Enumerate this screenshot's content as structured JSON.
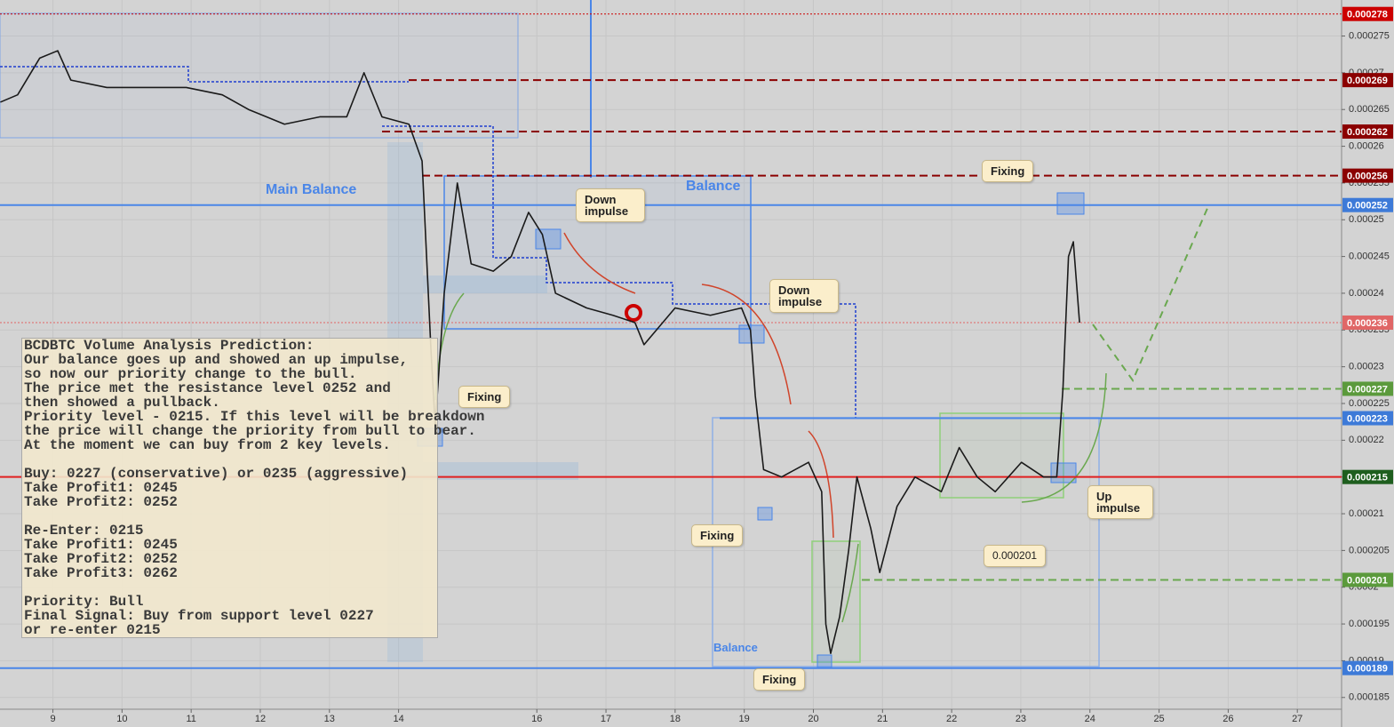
{
  "chart_data": {
    "type": "line",
    "grid": true,
    "xlim": [
      8.235,
      27.64
    ],
    "ylim": [
      0.0001834,
      0.0002799
    ],
    "xticks": [
      9,
      10,
      11,
      12,
      13,
      14,
      16,
      17,
      18,
      19,
      20,
      21,
      22,
      23,
      24,
      25,
      26,
      27
    ],
    "yticks": [
      0.000185,
      0.00019,
      0.000195,
      0.0002,
      0.000205,
      0.00021,
      0.000215,
      0.00022,
      0.000225,
      0.00023,
      0.000235,
      0.00024,
      0.000245,
      0.00025,
      0.000255,
      0.00026,
      0.000265,
      0.00027,
      0.000275
    ],
    "series": [
      {
        "color": "#1a1a1a",
        "x": [
          8.24,
          8.49,
          8.81,
          9.07,
          9.26,
          9.78,
          10.29,
          10.93,
          11.45,
          11.83,
          12.35,
          12.86,
          13.25,
          13.5,
          13.76,
          14.15,
          14.34,
          14.47,
          14.53,
          14.66,
          14.85,
          15.05,
          15.37,
          15.63,
          15.88,
          16.08,
          16.27,
          16.72,
          17.1,
          17.42,
          17.55,
          18.0,
          18.51,
          18.96,
          19.09,
          19.16,
          19.28,
          19.54,
          19.93,
          20.12,
          20.18,
          20.25,
          20.38,
          20.51,
          20.63,
          20.83,
          20.96,
          21.21,
          21.47,
          21.85,
          22.11,
          22.37,
          22.63,
          23.01,
          23.33,
          23.52,
          23.61,
          23.69,
          23.76,
          23.85
        ],
        "values": [
          0.000266,
          0.000267,
          0.000272,
          0.000273,
          0.000269,
          0.000268,
          0.000268,
          0.000268,
          0.000267,
          0.000265,
          0.000263,
          0.000264,
          0.000264,
          0.00027,
          0.000264,
          0.000263,
          0.000258,
          0.000232,
          0.000222,
          0.00024,
          0.000255,
          0.000244,
          0.000243,
          0.000245,
          0.000251,
          0.000248,
          0.00024,
          0.000238,
          0.000237,
          0.000236,
          0.000233,
          0.000238,
          0.000237,
          0.000238,
          0.000235,
          0.000226,
          0.000216,
          0.000215,
          0.000217,
          0.000213,
          0.000195,
          0.000191,
          0.000196,
          0.000205,
          0.000215,
          0.000208,
          0.000202,
          0.000211,
          0.000215,
          0.000213,
          0.000219,
          0.000215,
          0.000213,
          0.000217,
          0.000215,
          0.000215,
          0.000227,
          0.000245,
          0.000247,
          0.000236
        ]
      }
    ],
    "levels": [
      {
        "value": 0.000278,
        "color": "#cc0000",
        "line_color": "#cc0000",
        "style": "dotted"
      },
      {
        "value": 0.000269,
        "color": "#8b0000",
        "line_color": "#8b0000",
        "style": "dashed"
      },
      {
        "value": 0.000262,
        "color": "#8b0000",
        "line_color": "#8b0000",
        "style": "dashed"
      },
      {
        "value": 0.000256,
        "color": "#8b0000",
        "line_color": "#8b0000",
        "style": "dashed"
      },
      {
        "value": 0.000252,
        "color": "#3d7ad8",
        "line_color": "#4a86e8",
        "style": "solid"
      },
      {
        "value": 0.000236,
        "color": "#e06666",
        "line_color": "#e06666",
        "style": "dotted"
      },
      {
        "value": 0.000227,
        "color": "#5b9a3c",
        "line_color": "#6aa84f",
        "style": "dashed"
      },
      {
        "value": 0.000223,
        "color": "#3d7ad8",
        "line_color": "#4a86e8",
        "style": "solid"
      },
      {
        "value": 0.000215,
        "color": "#1e5e1e",
        "line_color": "#e02020",
        "style": "solid"
      },
      {
        "value": 0.000201,
        "color": "#5b9a3c",
        "line_color": "#6aa84f",
        "style": "dashed"
      },
      {
        "value": 0.000189,
        "color": "#3d7ad8",
        "line_color": "#4a86e8",
        "style": "solid"
      }
    ],
    "zone_labels": [
      "Main Balance",
      "Balance",
      "Balance"
    ],
    "annotations": [
      {
        "text": "Down impulse"
      },
      {
        "text": "Down impulse"
      },
      {
        "text": "Fixing"
      },
      {
        "text": "Fixing"
      },
      {
        "text": "Fixing"
      },
      {
        "text": "Fixing"
      },
      {
        "text": "Up impulse"
      },
      {
        "text": 0.000201
      }
    ],
    "text_box": {
      "paragraphs": [
        [
          "BCDBTC Volume Analysis Prediction:",
          "Our balance goes up and showed an up impulse,",
          "so now our priority change to the bull.",
          "The price met the resistance level 0252 and",
          "then showed a pullback.",
          "Priority level - 0215. If this level will be breakdown",
          "the price will change the priority from bull to bear.",
          "At the moment we can buy from 2 key levels."
        ],
        [
          "Buy: 0227 (conservative) or 0235 (aggressive)",
          "Take Profit1: 0245",
          "Take Profit2: 0252"
        ],
        [
          "Re-Enter: 0215",
          "Take Profit1: 0245",
          "Take Profit2: 0252",
          "Take Profit3: 0262"
        ],
        [
          "Priority: Bull",
          "Final Signal: Buy from support level 0227",
          "or re-enter 0215"
        ]
      ]
    }
  }
}
